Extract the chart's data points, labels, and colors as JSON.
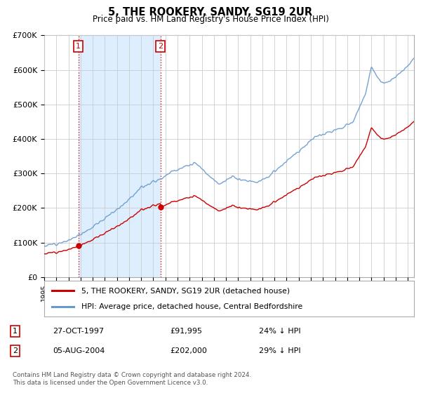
{
  "title": "5, THE ROOKERY, SANDY, SG19 2UR",
  "subtitle": "Price paid vs. HM Land Registry's House Price Index (HPI)",
  "ylim": [
    0,
    700000
  ],
  "yticks": [
    0,
    100000,
    200000,
    300000,
    400000,
    500000,
    600000,
    700000
  ],
  "ytick_labels": [
    "£0",
    "£100K",
    "£200K",
    "£300K",
    "£400K",
    "£500K",
    "£600K",
    "£700K"
  ],
  "sale1_date": 1997.82,
  "sale1_price": 91995,
  "sale2_date": 2004.59,
  "sale2_price": 202000,
  "line1_color": "#cc0000",
  "line2_color": "#6699cc",
  "fill_color": "#ddeeff",
  "grid_color": "#cccccc",
  "background_color": "#ffffff",
  "legend_line1": "5, THE ROOKERY, SANDY, SG19 2UR (detached house)",
  "legend_line2": "HPI: Average price, detached house, Central Bedfordshire",
  "table_row1_num": "1",
  "table_row1_date": "27-OCT-1997",
  "table_row1_price": "£91,995",
  "table_row1_hpi": "24% ↓ HPI",
  "table_row2_num": "2",
  "table_row2_date": "05-AUG-2004",
  "table_row2_price": "£202,000",
  "table_row2_hpi": "29% ↓ HPI",
  "footer": "Contains HM Land Registry data © Crown copyright and database right 2024.\nThis data is licensed under the Open Government Licence v3.0.",
  "xmin": 1995.0,
  "xmax": 2025.5,
  "n_points": 800,
  "hpi_seed": 12,
  "prop_seed": 99
}
